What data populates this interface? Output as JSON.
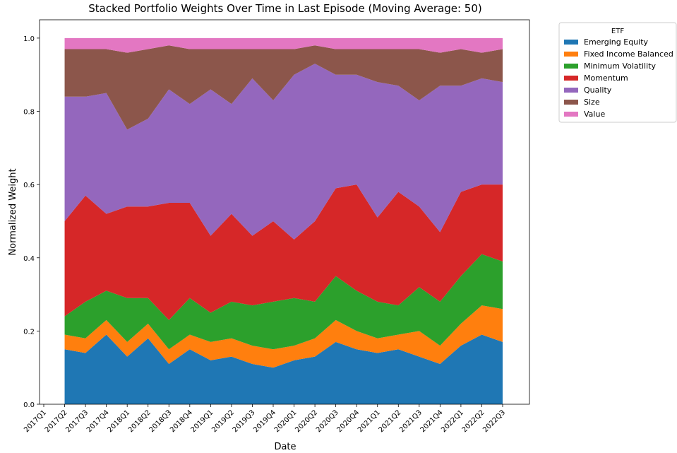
{
  "chart_data": {
    "type": "stacked_area",
    "title": "Stacked Portfolio Weights Over Time in Last Episode (Moving Average: 50)",
    "x_label": "Date",
    "y_label": "Normalized Weight",
    "categories": [
      "2017Q1",
      "2017Q2",
      "2017Q3",
      "2017Q4",
      "2018Q1",
      "2018Q2",
      "2018Q3",
      "2018Q4",
      "2019Q1",
      "2019Q2",
      "2019Q3",
      "2019Q4",
      "2020Q1",
      "2020Q2",
      "2020Q3",
      "2020Q4",
      "2021Q1",
      "2021Q2",
      "2021Q3",
      "2021Q4",
      "2022Q1",
      "2022Q2",
      "2022Q3"
    ],
    "ylim": [
      0,
      1.05
    ],
    "yticks": [
      {
        "value": 0,
        "label": "0.0"
      },
      0.2,
      0.4,
      0.6,
      0.8,
      {
        "value": 1,
        "label": "1.0"
      }
    ],
    "grid": false,
    "legend_title": "ETF",
    "legend_position": "outside-upper-right",
    "series": [
      {
        "name": "Emerging Equity",
        "color": "#1f77b4",
        "values": [
          null,
          0.15,
          0.14,
          0.19,
          0.13,
          0.18,
          0.11,
          0.15,
          0.12,
          0.13,
          0.11,
          0.1,
          0.12,
          0.13,
          0.17,
          0.15,
          0.14,
          0.15,
          0.13,
          0.11,
          0.16,
          0.19,
          0.17
        ]
      },
      {
        "name": "Fixed Income Balanced",
        "color": "#ff7f0e",
        "values": [
          null,
          0.04,
          0.04,
          0.04,
          0.04,
          0.04,
          0.04,
          0.04,
          0.05,
          0.05,
          0.05,
          0.05,
          0.04,
          0.05,
          0.06,
          0.05,
          0.04,
          0.04,
          0.07,
          0.05,
          0.06,
          0.08,
          0.09
        ]
      },
      {
        "name": "Minimum Volatility",
        "color": "#2ca02c",
        "values": [
          null,
          0.05,
          0.1,
          0.08,
          0.12,
          0.07,
          0.08,
          0.1,
          0.08,
          0.1,
          0.11,
          0.13,
          0.13,
          0.1,
          0.12,
          0.11,
          0.1,
          0.08,
          0.12,
          0.12,
          0.13,
          0.14,
          0.13
        ]
      },
      {
        "name": "Momentum",
        "color": "#d62728",
        "values": [
          null,
          0.26,
          0.29,
          0.21,
          0.25,
          0.25,
          0.32,
          0.26,
          0.21,
          0.24,
          0.19,
          0.22,
          0.16,
          0.22,
          0.24,
          0.29,
          0.23,
          0.31,
          0.22,
          0.19,
          0.23,
          0.19,
          0.21
        ]
      },
      {
        "name": "Quality",
        "color": "#9467bd",
        "values": [
          null,
          0.34,
          0.27,
          0.33,
          0.21,
          0.24,
          0.31,
          0.27,
          0.4,
          0.3,
          0.43,
          0.33,
          0.45,
          0.43,
          0.31,
          0.3,
          0.37,
          0.29,
          0.29,
          0.4,
          0.29,
          0.29,
          0.28
        ]
      },
      {
        "name": "Size",
        "color": "#8c564b",
        "values": [
          null,
          0.13,
          0.13,
          0.12,
          0.21,
          0.19,
          0.12,
          0.15,
          0.11,
          0.15,
          0.08,
          0.14,
          0.07,
          0.05,
          0.07,
          0.07,
          0.09,
          0.1,
          0.14,
          0.09,
          0.1,
          0.07,
          0.09
        ]
      },
      {
        "name": "Value",
        "color": "#e377c2",
        "values": [
          null,
          0.03,
          0.03,
          0.03,
          0.04,
          0.03,
          0.02,
          0.03,
          0.03,
          0.03,
          0.03,
          0.03,
          0.03,
          0.02,
          0.03,
          0.03,
          0.03,
          0.03,
          0.03,
          0.04,
          0.03,
          0.04,
          0.03
        ]
      }
    ]
  }
}
